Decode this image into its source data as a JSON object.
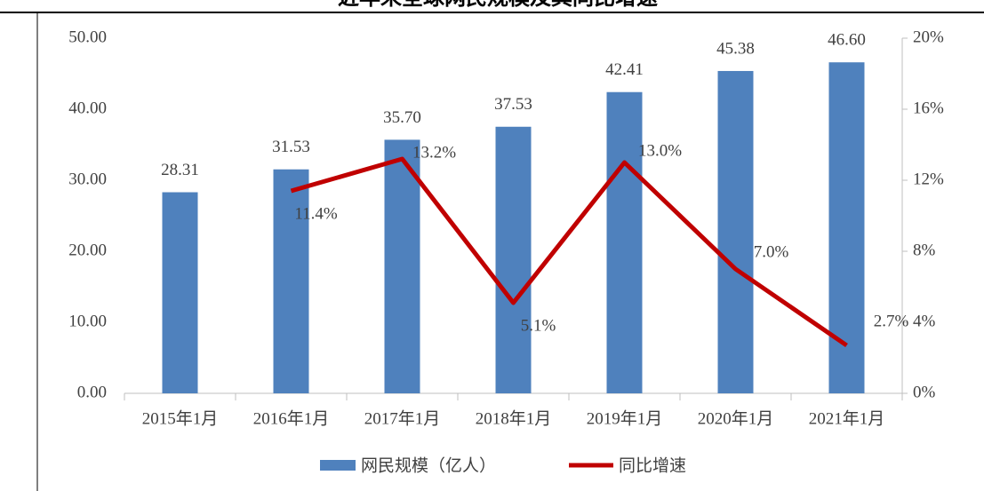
{
  "chart_data": {
    "type": "bar",
    "title": "近年来全球网民规模及其同比增速",
    "categories": [
      "2015年1月",
      "2016年1月",
      "2017年1月",
      "2018年1月",
      "2019年1月",
      "2020年1月",
      "2021年1月"
    ],
    "series": [
      {
        "name": "网民规模（亿人）",
        "type": "bar",
        "color": "#4f81bd",
        "values": [
          28.31,
          31.53,
          35.7,
          37.53,
          42.41,
          45.38,
          46.6
        ],
        "value_labels": [
          "28.31",
          "31.53",
          "35.70",
          "37.53",
          "42.41",
          "45.38",
          "46.60"
        ]
      },
      {
        "name": "同比增速",
        "type": "line",
        "axis": "y2",
        "color": "#c00000",
        "values": [
          null,
          11.4,
          13.2,
          5.1,
          13.0,
          7.0,
          2.7
        ],
        "value_labels": [
          null,
          "11.4%",
          "13.2%",
          "5.1%",
          "13.0%",
          "7.0%",
          "2.7%"
        ]
      }
    ],
    "ylim": [
      0,
      50
    ],
    "yticks": [
      {
        "value": 0,
        "label": "0.00"
      },
      {
        "value": 10,
        "label": "10.00"
      },
      {
        "value": 20,
        "label": "20.00"
      },
      {
        "value": 30,
        "label": "30.00"
      },
      {
        "value": 40,
        "label": "40.00"
      },
      {
        "value": 50,
        "label": "50.00"
      }
    ],
    "y2lim": [
      0,
      20
    ],
    "y2ticks": [
      {
        "value": 0,
        "label": "0%"
      },
      {
        "value": 4,
        "label": "4%"
      },
      {
        "value": 8,
        "label": "8%"
      },
      {
        "value": 12,
        "label": "12%"
      },
      {
        "value": 16,
        "label": "16%"
      },
      {
        "value": 20,
        "label": "20%"
      }
    ],
    "legend": "bottom"
  }
}
